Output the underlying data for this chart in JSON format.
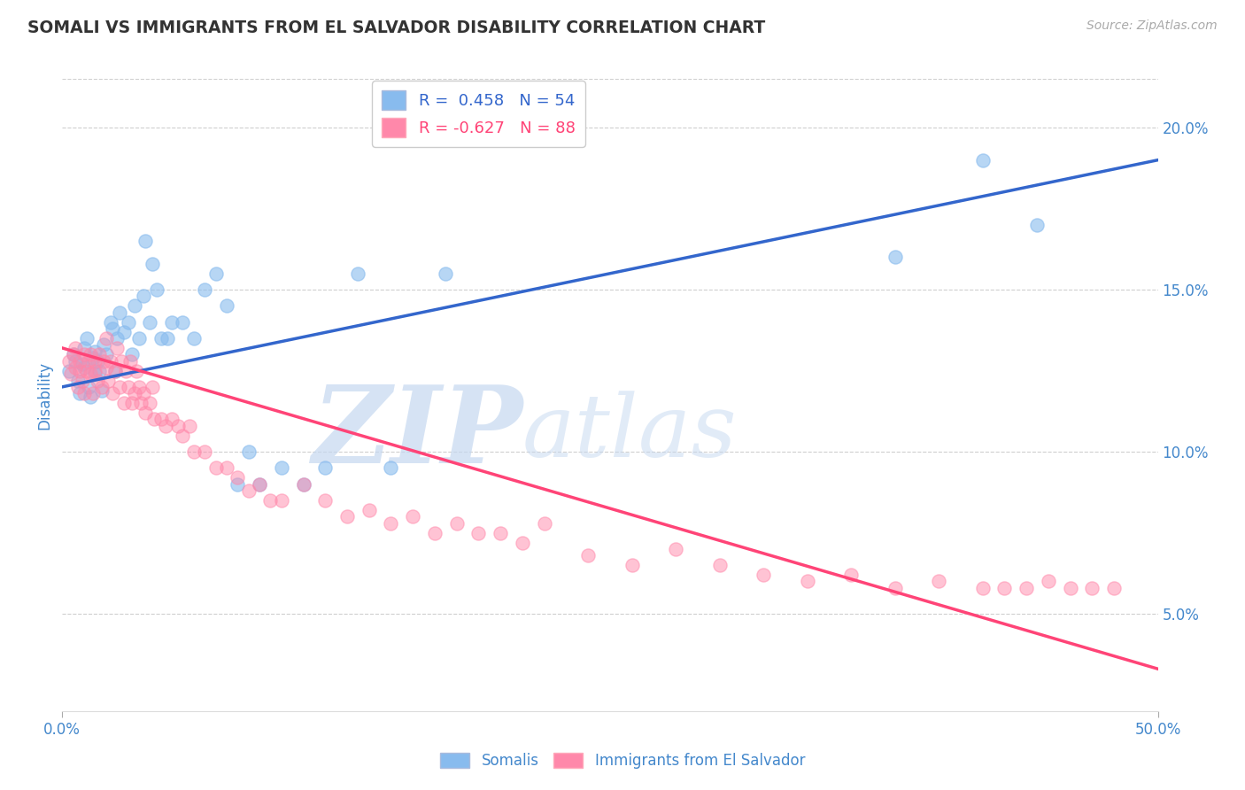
{
  "title": "SOMALI VS IMMIGRANTS FROM EL SALVADOR DISABILITY CORRELATION CHART",
  "source": "Source: ZipAtlas.com",
  "ylabel": "Disability",
  "xlim": [
    0.0,
    0.5
  ],
  "ylim": [
    0.02,
    0.215
  ],
  "xtick_positions": [
    0.0,
    0.5
  ],
  "xtick_labels": [
    "0.0%",
    "50.0%"
  ],
  "yticks_right": [
    0.05,
    0.1,
    0.15,
    0.2
  ],
  "ytick_labels_right": [
    "5.0%",
    "10.0%",
    "15.0%",
    "20.0%"
  ],
  "somali_R": 0.458,
  "somali_N": 54,
  "salvador_R": -0.627,
  "salvador_N": 88,
  "blue_scatter_color": "#88BBEE",
  "pink_scatter_color": "#FF88AA",
  "blue_line_color": "#3366CC",
  "pink_line_color": "#FF4477",
  "watermark_zip": "ZIP",
  "watermark_atlas": "atlas",
  "watermark_color_zip": "#C5D8F0",
  "watermark_color_atlas": "#C5D8F0",
  "background_color": "#FFFFFF",
  "grid_color": "#BBBBBB",
  "title_color": "#333333",
  "axis_tick_color": "#4488CC",
  "ylabel_color": "#4488CC",
  "blue_line_start_y": 0.12,
  "blue_line_end_y": 0.19,
  "pink_line_start_y": 0.132,
  "pink_line_end_y": 0.033,
  "somali_points_x": [
    0.003,
    0.005,
    0.006,
    0.007,
    0.008,
    0.009,
    0.01,
    0.01,
    0.011,
    0.012,
    0.013,
    0.014,
    0.015,
    0.015,
    0.016,
    0.017,
    0.018,
    0.019,
    0.02,
    0.022,
    0.023,
    0.024,
    0.025,
    0.026,
    0.028,
    0.03,
    0.032,
    0.033,
    0.035,
    0.037,
    0.038,
    0.04,
    0.041,
    0.043,
    0.045,
    0.048,
    0.05,
    0.055,
    0.06,
    0.065,
    0.07,
    0.075,
    0.08,
    0.085,
    0.09,
    0.1,
    0.11,
    0.12,
    0.135,
    0.15,
    0.175,
    0.38,
    0.42,
    0.445
  ],
  "somali_points_y": [
    0.125,
    0.13,
    0.128,
    0.122,
    0.118,
    0.127,
    0.126,
    0.132,
    0.135,
    0.12,
    0.117,
    0.129,
    0.124,
    0.131,
    0.128,
    0.125,
    0.119,
    0.133,
    0.13,
    0.14,
    0.138,
    0.125,
    0.135,
    0.143,
    0.137,
    0.14,
    0.13,
    0.145,
    0.135,
    0.148,
    0.165,
    0.14,
    0.158,
    0.15,
    0.135,
    0.135,
    0.14,
    0.14,
    0.135,
    0.15,
    0.155,
    0.145,
    0.09,
    0.1,
    0.09,
    0.095,
    0.09,
    0.095,
    0.155,
    0.095,
    0.155,
    0.16,
    0.19,
    0.17
  ],
  "salvador_points_x": [
    0.003,
    0.004,
    0.005,
    0.006,
    0.006,
    0.007,
    0.008,
    0.008,
    0.009,
    0.01,
    0.01,
    0.011,
    0.012,
    0.013,
    0.013,
    0.014,
    0.015,
    0.015,
    0.016,
    0.017,
    0.018,
    0.019,
    0.02,
    0.02,
    0.021,
    0.022,
    0.023,
    0.024,
    0.025,
    0.026,
    0.027,
    0.028,
    0.029,
    0.03,
    0.031,
    0.032,
    0.033,
    0.034,
    0.035,
    0.036,
    0.037,
    0.038,
    0.04,
    0.041,
    0.042,
    0.045,
    0.047,
    0.05,
    0.053,
    0.055,
    0.058,
    0.06,
    0.065,
    0.07,
    0.075,
    0.08,
    0.085,
    0.09,
    0.095,
    0.1,
    0.11,
    0.12,
    0.13,
    0.14,
    0.15,
    0.16,
    0.17,
    0.18,
    0.19,
    0.2,
    0.21,
    0.22,
    0.24,
    0.26,
    0.28,
    0.3,
    0.32,
    0.34,
    0.36,
    0.38,
    0.4,
    0.42,
    0.43,
    0.44,
    0.45,
    0.46,
    0.47,
    0.48
  ],
  "salvador_points_y": [
    0.128,
    0.124,
    0.13,
    0.126,
    0.132,
    0.12,
    0.125,
    0.128,
    0.122,
    0.13,
    0.118,
    0.125,
    0.128,
    0.124,
    0.13,
    0.118,
    0.128,
    0.125,
    0.122,
    0.13,
    0.12,
    0.128,
    0.126,
    0.135,
    0.122,
    0.128,
    0.118,
    0.125,
    0.132,
    0.12,
    0.128,
    0.115,
    0.125,
    0.12,
    0.128,
    0.115,
    0.118,
    0.125,
    0.12,
    0.115,
    0.118,
    0.112,
    0.115,
    0.12,
    0.11,
    0.11,
    0.108,
    0.11,
    0.108,
    0.105,
    0.108,
    0.1,
    0.1,
    0.095,
    0.095,
    0.092,
    0.088,
    0.09,
    0.085,
    0.085,
    0.09,
    0.085,
    0.08,
    0.082,
    0.078,
    0.08,
    0.075,
    0.078,
    0.075,
    0.075,
    0.072,
    0.078,
    0.068,
    0.065,
    0.07,
    0.065,
    0.062,
    0.06,
    0.062,
    0.058,
    0.06,
    0.058,
    0.058,
    0.058,
    0.06,
    0.058,
    0.058,
    0.058
  ]
}
